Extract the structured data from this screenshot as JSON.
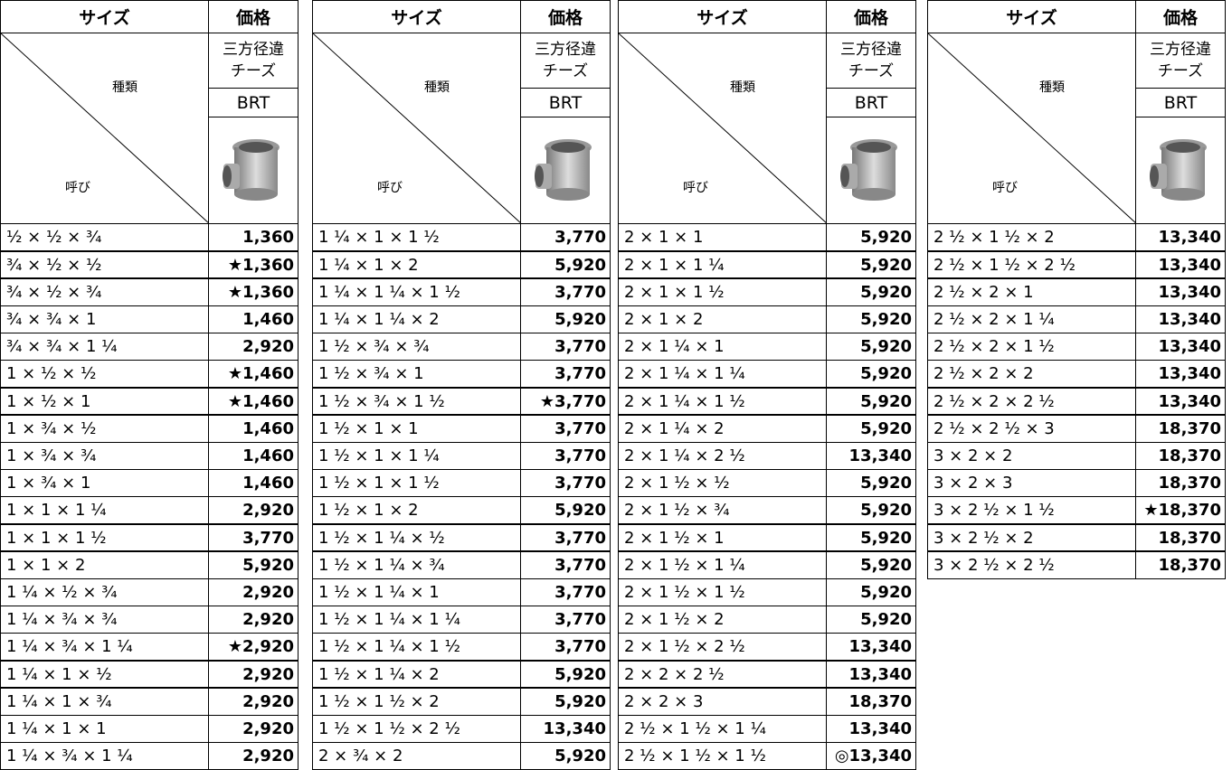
{
  "tables": [
    {
      "header": {
        "size": "サイズ",
        "price": "価格",
        "kind_label": "種類",
        "nominal_label": "呼び",
        "product_line1": "三方径違",
        "product_line2": "チーズ",
        "code": "BRT"
      },
      "rows": [
        [
          "½ × ½ × ¾",
          "1,360"
        ],
        [
          "¾ × ½ × ½",
          "★1,360"
        ],
        [
          "¾ × ½ × ¾",
          "★1,360"
        ],
        [
          "¾ × ¾ × 1",
          "1,460"
        ],
        [
          "¾ × ¾ × 1 ¼",
          "2,920"
        ],
        [
          "1 × ½ × ½",
          "★1,460"
        ],
        [
          "1 × ½ × 1",
          "★1,460"
        ],
        [
          "1 × ¾ × ½",
          "1,460"
        ],
        [
          "1 × ¾ × ¾",
          "1,460"
        ],
        [
          "1 × ¾ × 1",
          "1,460"
        ],
        [
          "1 × 1 × 1 ¼",
          "2,920"
        ],
        [
          "1 × 1 × 1 ½",
          "3,770"
        ],
        [
          "1 × 1 × 2",
          "5,920"
        ],
        [
          "1 ¼ × ½ × ¾",
          "2,920"
        ],
        [
          "1 ¼ × ¾ × ¾",
          "2,920"
        ],
        [
          "1 ¼ × ¾ × 1 ¼",
          "★2,920"
        ],
        [
          "1 ¼ × 1 × ½",
          "2,920"
        ],
        [
          "1 ¼ × 1 × ¾",
          "2,920"
        ],
        [
          "1 ¼ × 1 × 1",
          "2,920"
        ],
        [
          "1 ¼ × ¾ × 1 ¼",
          "2,920"
        ]
      ]
    },
    {
      "header": {
        "size": "サイズ",
        "price": "価格",
        "kind_label": "種類",
        "nominal_label": "呼び",
        "product_line1": "三方径違",
        "product_line2": "チーズ",
        "code": "BRT"
      },
      "rows": [
        [
          "1 ¼ × 1 × 1 ½",
          "3,770"
        ],
        [
          "1 ¼ × 1 × 2",
          "5,920"
        ],
        [
          "1 ¼ × 1 ¼ × 1 ½",
          "3,770"
        ],
        [
          "1 ¼ × 1 ¼ × 2",
          "5,920"
        ],
        [
          "1 ½ × ¾ × ¾",
          "3,770"
        ],
        [
          "1 ½ × ¾ × 1",
          "3,770"
        ],
        [
          "1 ½ × ¾ × 1 ½",
          "★3,770"
        ],
        [
          "1 ½ × 1 × 1",
          "3,770"
        ],
        [
          "1 ½ × 1 × 1 ¼",
          "3,770"
        ],
        [
          "1 ½ × 1 × 1 ½",
          "3,770"
        ],
        [
          "1 ½ × 1 × 2",
          "5,920"
        ],
        [
          "1 ½ × 1 ¼ × ½",
          "3,770"
        ],
        [
          "1 ½ × 1 ¼ × ¾",
          "3,770"
        ],
        [
          "1 ½ × 1 ¼ × 1",
          "3,770"
        ],
        [
          "1 ½ × 1 ¼ × 1 ¼",
          "3,770"
        ],
        [
          "1 ½ × 1 ¼ × 1 ½",
          "3,770"
        ],
        [
          "1 ½ × 1 ¼ × 2",
          "5,920"
        ],
        [
          "1 ½ × 1 ½ × 2",
          "5,920"
        ],
        [
          "1 ½ × 1 ½ × 2 ½",
          "13,340"
        ],
        [
          "2 × ¾ × 2",
          "5,920"
        ]
      ]
    },
    {
      "header": {
        "size": "サイズ",
        "price": "価格",
        "kind_label": "種類",
        "nominal_label": "呼び",
        "product_line1": "三方径違",
        "product_line2": "チーズ",
        "code": "BRT"
      },
      "rows": [
        [
          "2 × 1 × 1",
          "5,920"
        ],
        [
          "2 × 1 × 1 ¼",
          "5,920"
        ],
        [
          "2 × 1 × 1 ½",
          "5,920"
        ],
        [
          "2 × 1 × 2",
          "5,920"
        ],
        [
          "2 × 1 ¼ × 1",
          "5,920"
        ],
        [
          "2 × 1 ¼ × 1 ¼",
          "5,920"
        ],
        [
          "2 × 1 ¼ × 1 ½",
          "5,920"
        ],
        [
          "2 × 1 ¼ × 2",
          "5,920"
        ],
        [
          "2 × 1 ¼ × 2 ½",
          "13,340"
        ],
        [
          "2 × 1 ½ × ½",
          "5,920"
        ],
        [
          "2 × 1 ½ × ¾",
          "5,920"
        ],
        [
          "2 × 1 ½ × 1",
          "5,920"
        ],
        [
          "2 × 1 ½ × 1 ¼",
          "5,920"
        ],
        [
          "2 × 1 ½ × 1 ½",
          "5,920"
        ],
        [
          "2 × 1 ½ × 2",
          "5,920"
        ],
        [
          "2 × 1 ½ × 2 ½",
          "13,340"
        ],
        [
          "2 × 2 × 2 ½",
          "13,340"
        ],
        [
          "2 × 2 × 3",
          "18,370"
        ],
        [
          "2 ½ × 1 ½ × 1 ¼",
          "13,340"
        ],
        [
          "2 ½ × 1 ½ × 1 ½",
          "◎13,340"
        ]
      ]
    },
    {
      "header": {
        "size": "サイズ",
        "price": "価格",
        "kind_label": "種類",
        "nominal_label": "呼び",
        "product_line1": "三方径違",
        "product_line2": "チーズ",
        "code": "BRT"
      },
      "rows": [
        [
          "2 ½ × 1 ½ × 2",
          "13,340"
        ],
        [
          "2 ½ × 1 ½ × 2 ½",
          "13,340"
        ],
        [
          "2 ½ × 2 × 1",
          "13,340"
        ],
        [
          "2 ½ × 2 × 1 ¼",
          "13,340"
        ],
        [
          "2 ½ × 2 × 1 ½",
          "13,340"
        ],
        [
          "2 ½ × 2 × 2",
          "13,340"
        ],
        [
          "2 ½ × 2 × 2 ½",
          "13,340"
        ],
        [
          "2 ½ × 2 ½ × 3",
          "18,370"
        ],
        [
          "3 × 2 × 2",
          "18,370"
        ],
        [
          "3 × 2 × 3",
          "18,370"
        ],
        [
          "3 × 2 ½ × 1 ½",
          "★18,370"
        ],
        [
          "3 × 2 ½ × 2",
          "18,370"
        ],
        [
          "3 × 2 ½ × 2 ½",
          "18,370"
        ]
      ]
    }
  ]
}
